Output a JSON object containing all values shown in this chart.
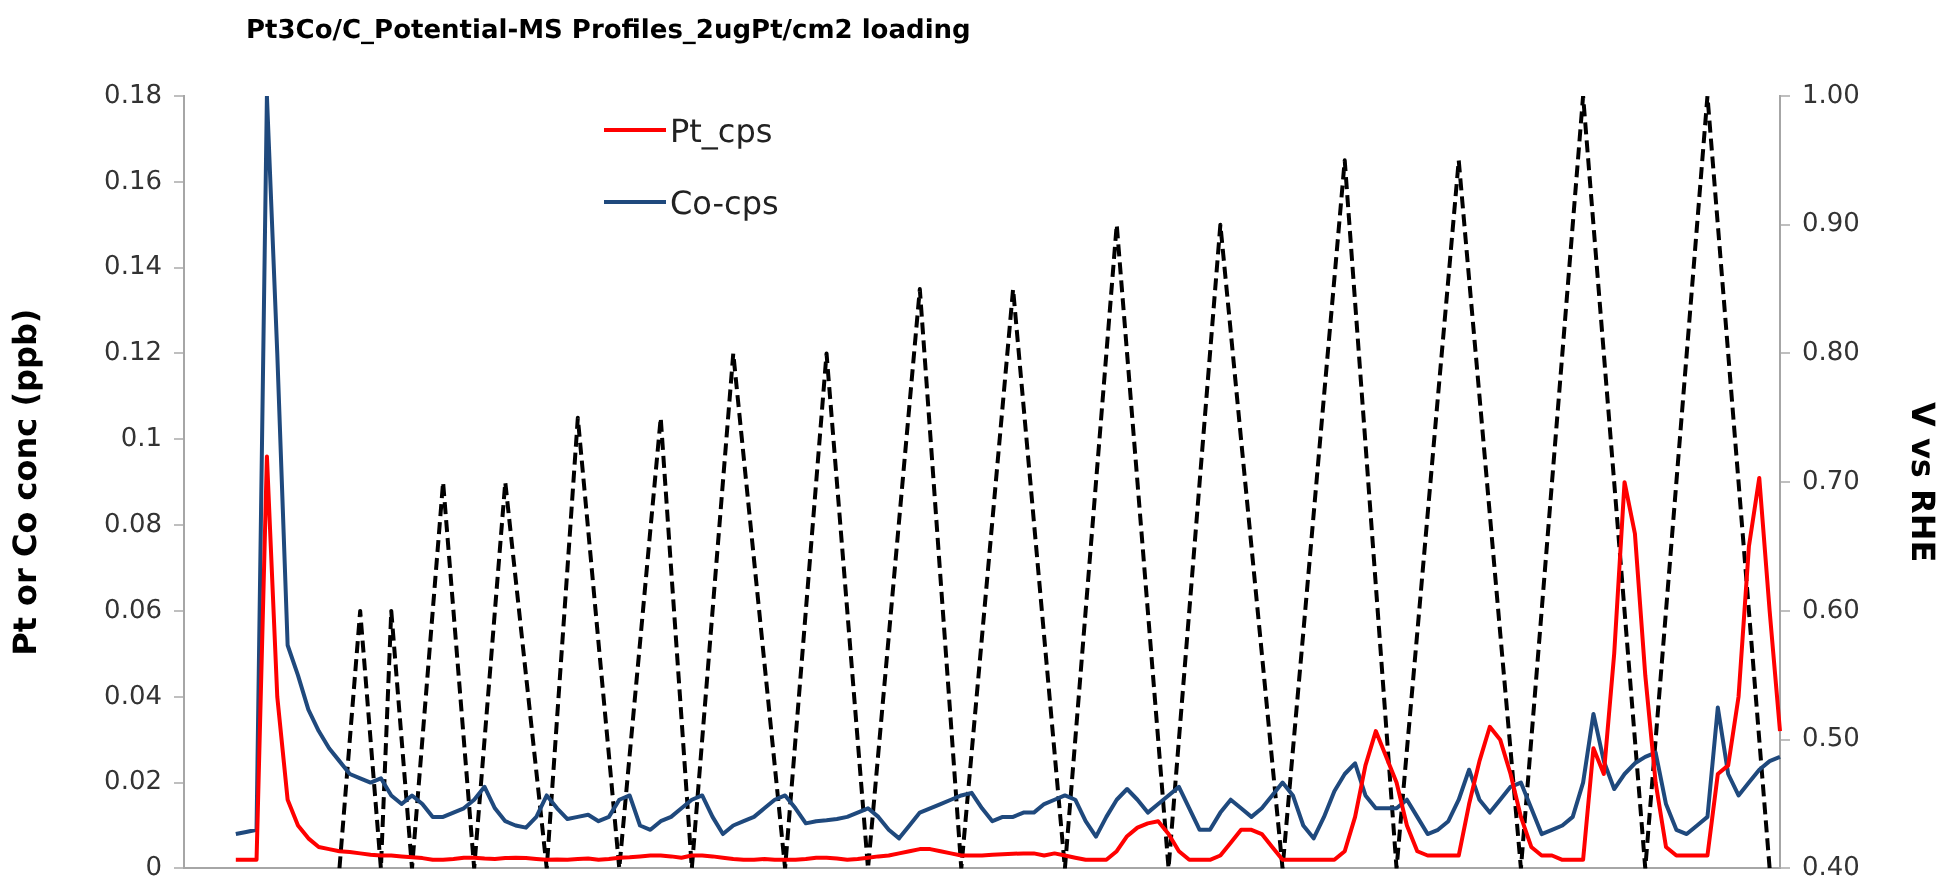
{
  "chart_data": {
    "type": "line",
    "title": "Pt3Co/C_Potential-MS Profiles_2ugPt/cm2 loading",
    "ylabel": "Pt or Co conc (ppb)",
    "y2label": "V vs RHE",
    "categories": [
      null,
      null,
      null,
      null,
      null,
      null,
      null,
      null,
      null,
      null,
      null,
      null,
      null,
      null,
      null,
      null,
      null,
      null,
      null,
      null,
      null,
      null,
      null,
      null,
      null,
      null,
      null,
      null,
      null,
      null,
      null,
      null,
      null,
      null,
      null,
      null,
      null,
      null,
      null,
      null,
      null,
      null,
      null,
      null,
      null,
      null,
      null,
      null,
      null,
      null,
      null,
      null,
      null,
      null,
      null,
      null,
      null,
      null,
      null,
      null,
      null,
      null,
      null,
      null,
      null,
      null,
      null,
      null,
      null,
      null,
      null,
      null,
      null,
      null,
      null,
      null,
      null,
      null,
      null,
      null,
      null,
      null,
      null,
      null,
      null,
      null,
      null,
      null,
      null,
      null,
      null,
      null,
      null,
      null,
      null,
      null,
      null,
      null,
      null,
      null,
      null,
      null,
      null,
      null,
      null,
      null,
      null,
      null,
      null,
      null,
      null,
      null,
      null,
      null,
      null,
      null,
      null,
      null,
      null,
      null,
      null,
      null,
      null,
      null,
      null,
      null,
      null,
      null,
      null,
      null,
      null,
      null,
      null,
      null,
      null,
      null,
      null,
      null,
      null,
      null,
      null,
      null,
      null,
      null,
      null,
      null,
      null,
      null,
      null,
      null,
      null,
      null,
      null,
      null,
      null
    ],
    "ylim": [
      0,
      0.18
    ],
    "yticks": [
      0,
      0.02,
      0.04,
      0.06,
      0.08,
      0.1,
      0.12,
      0.14,
      0.16,
      0.18
    ],
    "y2lim": [
      0.4,
      1.0
    ],
    "y2ticks": [
      {
        "value": 0.4,
        "label": "0.40"
      },
      {
        "value": 0.5,
        "label": "0.50"
      },
      {
        "value": 0.6,
        "label": "0.60"
      },
      {
        "value": 0.7,
        "label": "0.70"
      },
      {
        "value": 0.8,
        "label": "0.80"
      },
      {
        "value": 0.9,
        "label": "0.90"
      },
      {
        "value": 1.0,
        "label": "1.00"
      }
    ],
    "grid": false,
    "legend": "top",
    "marker": "none",
    "series": [
      {
        "name": "Pt_cps",
        "color": "#ff0000",
        "line_style": "solid",
        "values": [
          null,
          null,
          null,
          null,
          null,
          0.002,
          0.002,
          0.002,
          0.096,
          0.04,
          0.016,
          0.01,
          0.007,
          0.005,
          0.0045,
          0.004,
          0.0038,
          0.0035,
          0.0032,
          0.003,
          0.003,
          0.0028,
          0.0026,
          0.0024,
          0.002,
          0.002,
          0.0022,
          0.0025,
          0.0025,
          0.0023,
          0.0022,
          0.0024,
          0.0025,
          0.0024,
          0.0022,
          0.002,
          0.0021,
          0.002,
          0.0022,
          0.0023,
          0.002,
          0.0022,
          0.0025,
          0.0026,
          0.0028,
          0.003,
          0.003,
          0.0028,
          0.0025,
          0.003,
          0.003,
          0.0028,
          0.0025,
          0.0022,
          0.002,
          0.002,
          0.0022,
          0.002,
          0.002,
          0.002,
          0.0022,
          0.0025,
          0.0025,
          0.0023,
          0.002,
          0.0022,
          0.0025,
          0.0028,
          0.003,
          0.0035,
          0.004,
          0.0045,
          0.0045,
          0.004,
          0.0035,
          0.003,
          0.003,
          0.003,
          0.0032,
          0.0033,
          0.0034,
          0.0035,
          0.0035,
          0.003,
          0.0035,
          0.003,
          0.0025,
          0.002,
          0.002,
          0.002,
          0.004,
          0.0075,
          0.0095,
          0.0105,
          0.011,
          0.008,
          0.004,
          0.002,
          0.002,
          0.002,
          0.003,
          0.006,
          0.009,
          0.009,
          0.008,
          0.005,
          0.002,
          0.002,
          0.002,
          0.002,
          0.002,
          0.002,
          0.004,
          0.012,
          0.024,
          0.032,
          0.026,
          0.02,
          0.01,
          0.004,
          0.003,
          0.003,
          0.003,
          0.003,
          0.015,
          0.025,
          0.033,
          0.03,
          0.022,
          0.012,
          0.005,
          0.003,
          0.003,
          0.002,
          0.002,
          0.002,
          0.028,
          0.022,
          0.05,
          0.09,
          0.078,
          0.045,
          0.02,
          0.005,
          0.003,
          0.003,
          0.003,
          0.003,
          0.022,
          0.024,
          0.04,
          0.075,
          0.091,
          0.06,
          0.032
        ]
      },
      {
        "name": "Co-cps",
        "color": "#1f497d",
        "line_style": "solid",
        "values": [
          null,
          null,
          null,
          null,
          null,
          0.008,
          0.0085,
          0.009,
          0.18,
          0.12,
          0.052,
          0.045,
          0.037,
          0.032,
          0.028,
          0.025,
          0.022,
          0.021,
          0.02,
          0.021,
          0.017,
          0.015,
          0.017,
          0.015,
          0.012,
          0.012,
          0.013,
          0.014,
          0.016,
          0.019,
          0.014,
          0.011,
          0.01,
          0.0095,
          0.012,
          0.017,
          0.014,
          0.0115,
          0.012,
          0.0125,
          0.011,
          0.012,
          0.016,
          0.017,
          0.01,
          0.009,
          0.011,
          0.012,
          0.014,
          0.016,
          0.017,
          0.012,
          0.008,
          0.01,
          0.011,
          0.012,
          0.014,
          0.016,
          0.017,
          0.014,
          0.0105,
          0.011,
          0.0112,
          0.0115,
          0.012,
          0.013,
          0.014,
          0.012,
          0.009,
          0.007,
          0.01,
          0.013,
          0.014,
          0.015,
          0.016,
          0.017,
          0.0176,
          0.014,
          0.011,
          0.012,
          0.012,
          0.013,
          0.013,
          0.015,
          0.016,
          0.017,
          0.016,
          0.011,
          0.0074,
          0.012,
          0.016,
          0.0185,
          0.016,
          0.013,
          0.015,
          0.017,
          0.019,
          0.014,
          0.009,
          0.009,
          0.013,
          0.016,
          0.014,
          0.012,
          0.014,
          0.017,
          0.02,
          0.017,
          0.01,
          0.007,
          0.012,
          0.018,
          0.022,
          0.0245,
          0.017,
          0.014,
          0.014,
          0.014,
          0.016,
          0.012,
          0.008,
          0.009,
          0.011,
          0.016,
          0.023,
          0.016,
          0.013,
          0.016,
          0.019,
          0.02,
          0.014,
          0.008,
          0.009,
          0.01,
          0.012,
          0.02,
          0.036,
          0.025,
          0.0185,
          0.022,
          0.0245,
          0.026,
          0.027,
          0.015,
          0.009,
          0.008,
          0.01,
          0.012,
          0.0375,
          0.022,
          0.017,
          0.02,
          0.023,
          0.025,
          0.026
        ]
      },
      {
        "color": "#000000",
        "axis": "y2",
        "line_style": "dashed",
        "values": [
          null,
          null,
          null,
          null,
          null,
          null,
          null,
          null,
          null,
          null,
          null,
          null,
          null,
          null,
          null,
          0.4,
          0.5,
          0.6,
          0.5,
          0.4,
          0.6,
          0.5,
          0.4,
          0.5,
          0.6,
          0.7,
          0.6,
          0.5,
          0.4,
          0.5,
          0.6,
          0.7,
          0.625,
          0.55,
          0.475,
          0.4,
          0.517,
          0.633,
          0.75,
          0.663,
          0.575,
          0.488,
          0.4,
          0.488,
          0.575,
          0.663,
          0.75,
          0.633,
          0.517,
          0.4,
          0.5,
          0.6,
          0.7,
          0.8,
          0.72,
          0.64,
          0.56,
          0.48,
          0.4,
          0.5,
          0.6,
          0.7,
          0.8,
          0.7,
          0.6,
          0.5,
          0.4,
          0.49,
          0.58,
          0.67,
          0.76,
          0.85,
          0.738,
          0.625,
          0.513,
          0.4,
          0.49,
          0.58,
          0.67,
          0.76,
          0.85,
          0.76,
          0.67,
          0.58,
          0.49,
          0.4,
          0.5,
          0.6,
          0.7,
          0.8,
          0.9,
          0.8,
          0.7,
          0.6,
          0.5,
          0.4,
          0.5,
          0.6,
          0.7,
          0.8,
          0.9,
          0.817,
          0.733,
          0.65,
          0.567,
          0.483,
          0.4,
          0.492,
          0.583,
          0.675,
          0.767,
          0.858,
          0.95,
          0.84,
          0.73,
          0.62,
          0.51,
          0.4,
          0.492,
          0.583,
          0.675,
          0.767,
          0.858,
          0.95,
          0.858,
          0.767,
          0.675,
          0.583,
          0.492,
          0.4,
          0.5,
          0.6,
          0.7,
          0.8,
          0.9,
          1.0,
          0.9,
          0.8,
          0.7,
          0.6,
          0.5,
          0.4,
          0.5,
          0.6,
          0.7,
          0.8,
          0.9,
          1.0,
          0.9,
          0.8,
          0.7,
          0.6,
          0.5,
          0.4,
          null
        ]
      }
    ]
  }
}
